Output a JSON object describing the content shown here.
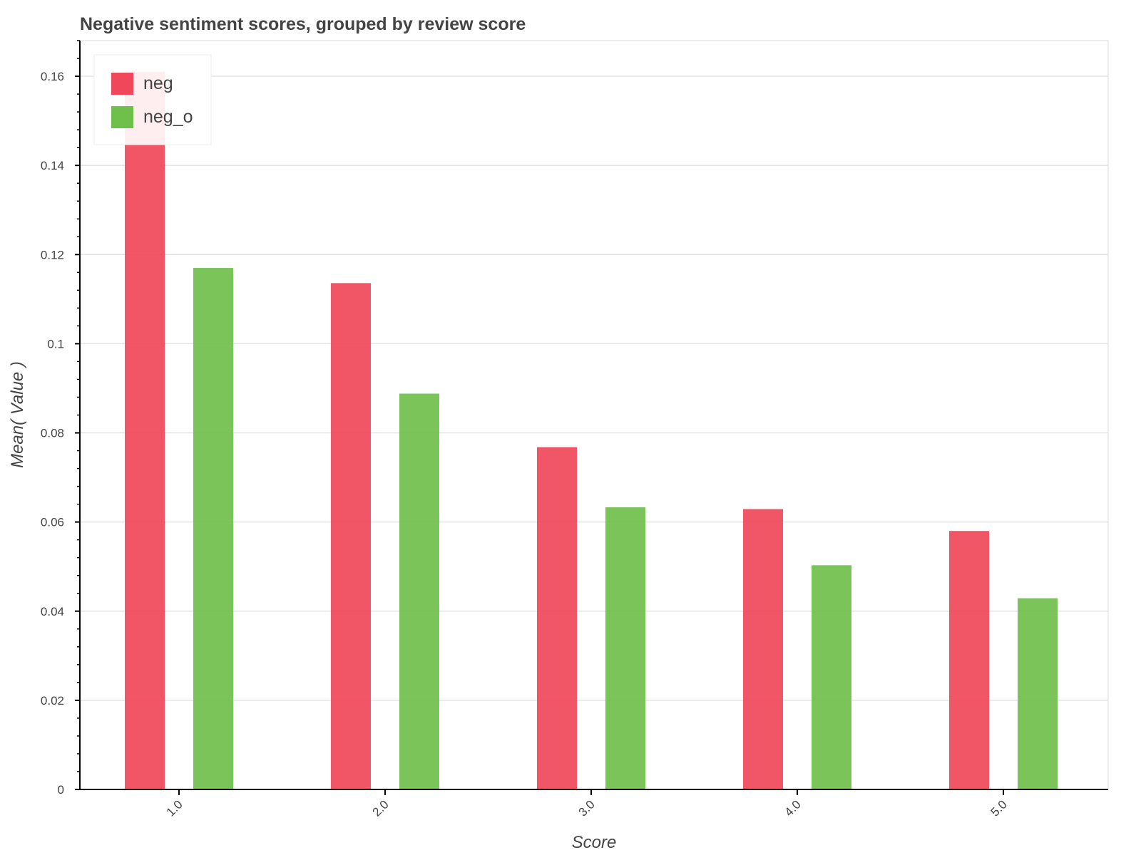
{
  "chart_data": {
    "type": "bar",
    "title": "Negative sentiment scores, grouped by review score",
    "xlabel": "Score",
    "ylabel": "Mean( Value )",
    "categories": [
      "1.0",
      "2.0",
      "3.0",
      "4.0",
      "5.0"
    ],
    "series": [
      {
        "name": "neg",
        "color": "#f0485a",
        "values": [
          0.161,
          0.1136,
          0.0768,
          0.0629,
          0.058
        ]
      },
      {
        "name": "neg_o",
        "color": "#6fbf4b",
        "values": [
          0.117,
          0.0888,
          0.0633,
          0.0503,
          0.0429
        ]
      }
    ],
    "ylim": [
      0,
      0.168
    ],
    "yticks": [
      0,
      0.02,
      0.04,
      0.06,
      0.08,
      0.1,
      0.12,
      0.14,
      0.16
    ],
    "ytick_labels": [
      "0",
      "0.02",
      "0.04",
      "0.06",
      "0.08",
      "0.1",
      "0.12",
      "0.14",
      "0.16"
    ],
    "grid": "horizontal",
    "legend_position": "top-left"
  }
}
